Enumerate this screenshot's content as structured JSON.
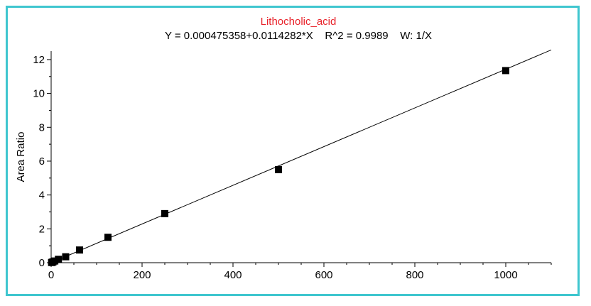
{
  "chart_data": {
    "type": "scatter",
    "title": "Lithocholic_acid",
    "subtitle": "Y = 0.000475358+0.0114282*X    R^2 = 0.9989    W: 1/X",
    "xlabel": "",
    "ylabel": "Area Ratio",
    "xlim": [
      0,
      1100
    ],
    "ylim": [
      0,
      12.5
    ],
    "x_ticks": [
      0,
      200,
      400,
      600,
      800,
      1000
    ],
    "y_ticks": [
      0,
      2,
      4,
      6,
      8,
      10,
      12
    ],
    "grid": false,
    "legend": "none",
    "series": [
      {
        "x": [
          1,
          2,
          4,
          8,
          16,
          32,
          62.5,
          125,
          250,
          500,
          1000
        ],
        "y": [
          0.01,
          0.02,
          0.05,
          0.1,
          0.2,
          0.35,
          0.75,
          1.5,
          2.9,
          5.5,
          11.35
        ]
      }
    ],
    "fit_line": {
      "intercept": 0.000475358,
      "slope": 0.0114282
    },
    "colors": {
      "title": "#e8222a",
      "frame_border": "#3fc6cf",
      "marker": "#000000",
      "line": "#000000"
    }
  }
}
